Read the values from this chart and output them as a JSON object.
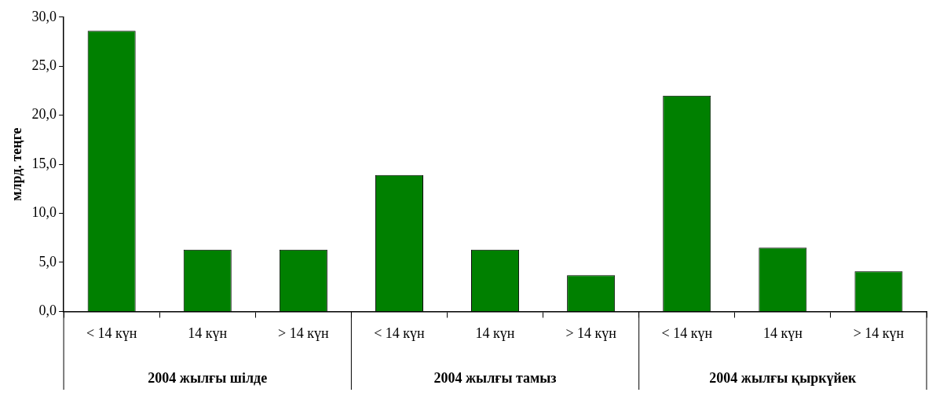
{
  "chart_data": {
    "type": "bar",
    "ylabel": "млрд. теңге",
    "categories": [
      "< 14 күн",
      "14 күн",
      "> 14 күн",
      "< 14 күн",
      "14 күн",
      "> 14 күн",
      "< 14 күн",
      "14 күн",
      "> 14 күн"
    ],
    "values": [
      28.6,
      6.3,
      6.3,
      13.9,
      6.3,
      3.7,
      22.0,
      6.5,
      4.1
    ],
    "color": "#008000",
    "ylim": [
      0,
      30
    ],
    "yticks": [
      {
        "value": 0,
        "label": "0,0"
      },
      {
        "value": 5,
        "label": "5,0"
      },
      {
        "value": 10,
        "label": "10,0"
      },
      {
        "value": 15,
        "label": "15,0"
      },
      {
        "value": 20,
        "label": "20,0"
      },
      {
        "value": 25,
        "label": "25,0"
      },
      {
        "value": 30,
        "label": "30,0"
      }
    ],
    "annotations": [
      "2004 жылғы шілде",
      "2004 жылғы тамыз",
      "2004 жылғы қыркүйек"
    ],
    "grid": false,
    "legend": false
  }
}
